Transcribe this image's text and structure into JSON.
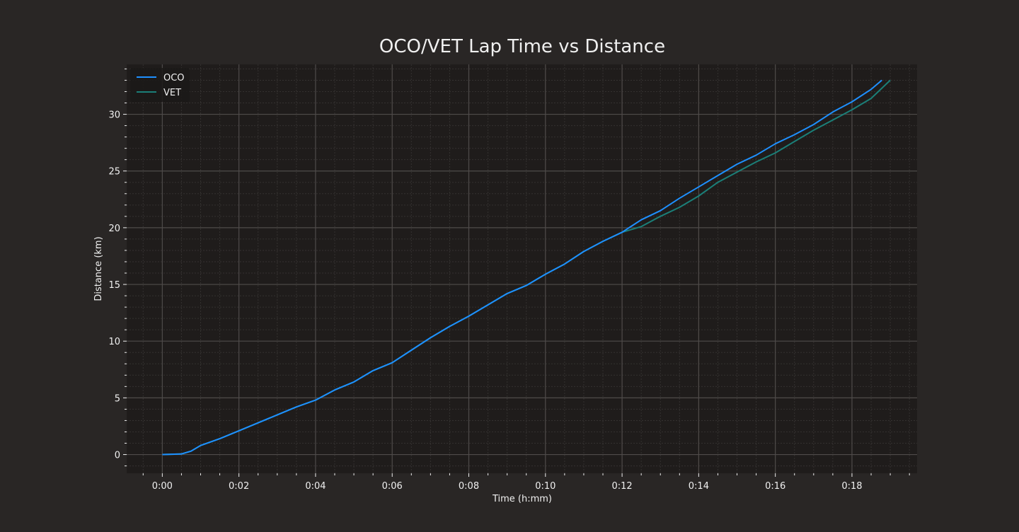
{
  "chart_data": {
    "type": "line",
    "title": "OCO/VET Lap Time vs Distance",
    "xlabel": "Time (h:mm)",
    "ylabel": "Distance (km)",
    "x_unit": "minutes",
    "xlim": [
      -0.93,
      19.7
    ],
    "ylim": [
      -1.65,
      34.4
    ],
    "x_ticks": [
      0,
      2,
      4,
      6,
      8,
      10,
      12,
      14,
      16,
      18
    ],
    "x_tick_labels": [
      "0:00",
      "0:02",
      "0:04",
      "0:06",
      "0:08",
      "0:10",
      "0:12",
      "0:14",
      "0:16",
      "0:18"
    ],
    "y_ticks": [
      0,
      5,
      10,
      15,
      20,
      25,
      30
    ],
    "y_tick_labels": [
      "0",
      "5",
      "10",
      "15",
      "20",
      "25",
      "30"
    ],
    "grid": true,
    "legend": "top-left",
    "series": [
      {
        "name": "OCO",
        "color": "#1e90ff",
        "x": [
          0,
          0.5,
          0.75,
          1.0,
          1.5,
          2.0,
          2.5,
          3.0,
          3.5,
          4.0,
          4.5,
          5.0,
          5.5,
          6.0,
          6.5,
          7.0,
          7.5,
          8.0,
          8.5,
          9.0,
          9.5,
          10.0,
          10.5,
          11.0,
          11.5,
          12.0,
          12.5,
          13.0,
          13.5,
          14.0,
          14.5,
          15.0,
          15.5,
          16.0,
          16.5,
          17.0,
          17.5,
          18.0,
          18.5,
          18.78
        ],
        "y": [
          0,
          0.05,
          0.3,
          0.8,
          1.4,
          2.1,
          2.8,
          3.5,
          4.2,
          4.8,
          5.7,
          6.4,
          7.4,
          8.1,
          9.2,
          10.3,
          11.3,
          12.2,
          13.2,
          14.2,
          14.9,
          15.9,
          16.8,
          17.9,
          18.8,
          19.6,
          20.7,
          21.5,
          22.6,
          23.6,
          24.6,
          25.6,
          26.4,
          27.4,
          28.2,
          29.1,
          30.2,
          31.1,
          32.2,
          33.0
        ]
      },
      {
        "name": "VET",
        "color": "#1b7f78",
        "x": [
          0,
          0.5,
          0.75,
          1.0,
          1.5,
          2.0,
          2.5,
          3.0,
          3.5,
          4.0,
          4.5,
          5.0,
          5.5,
          6.0,
          6.5,
          7.0,
          7.5,
          8.0,
          8.5,
          9.0,
          9.5,
          10.0,
          10.5,
          11.0,
          11.5,
          12.0,
          12.5,
          13.0,
          13.5,
          14.0,
          14.5,
          15.0,
          15.5,
          16.0,
          16.5,
          17.0,
          17.5,
          18.0,
          18.5,
          19.0
        ],
        "y": [
          0,
          0.05,
          0.3,
          0.8,
          1.4,
          2.1,
          2.8,
          3.5,
          4.2,
          4.8,
          5.7,
          6.4,
          7.4,
          8.1,
          9.2,
          10.3,
          11.3,
          12.2,
          13.2,
          14.2,
          14.9,
          15.9,
          16.8,
          17.9,
          18.8,
          19.6,
          20.1,
          21.0,
          21.8,
          22.8,
          24.0,
          24.9,
          25.8,
          26.6,
          27.6,
          28.6,
          29.5,
          30.4,
          31.4,
          33.0
        ]
      }
    ]
  },
  "colors": {
    "page_bg": "#292625",
    "plot_bg": "#1f1c1b",
    "grid_major": "#4f4b4a",
    "grid_minor": "#343130",
    "text": "#f0f0f0"
  }
}
